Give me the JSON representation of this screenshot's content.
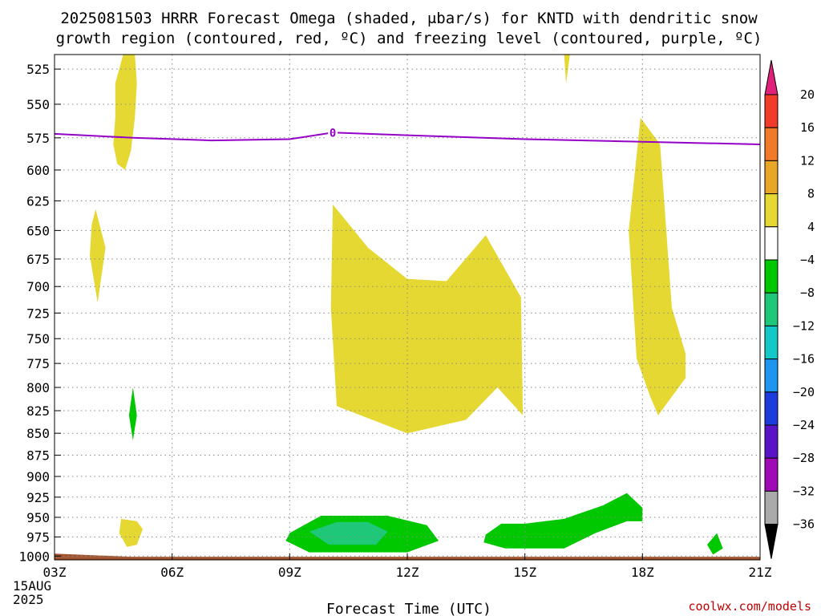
{
  "title": {
    "line1": "2025081503 HRRR Forecast Omega (shaded, μbar/s) for KNTD with dendritic snow",
    "line2": "growth region (contoured, red, ºC) and freezing level (contoured, purple, ºC)"
  },
  "credit": "coolwx.com/models",
  "chart_data": {
    "type": "contour",
    "title": "2025081503 HRRR Forecast Omega (shaded, μbar/s) for KNTD with dendritic snow growth region (contoured, red, ºC) and freezing level (contoured, purple, ºC)",
    "xlabel": "Forecast Time (UTC)",
    "ylabel": "",
    "x_unit": "hours since 2025-08-15 03Z",
    "xlim": [
      0,
      18
    ],
    "x_ticks": [
      {
        "x": 0,
        "label": "03Z",
        "sub": [
          "15AUG",
          "2025"
        ]
      },
      {
        "x": 3,
        "label": "06Z"
      },
      {
        "x": 6,
        "label": "09Z"
      },
      {
        "x": 9,
        "label": "12Z"
      },
      {
        "x": 12,
        "label": "15Z"
      },
      {
        "x": 15,
        "label": "18Z"
      },
      {
        "x": 18,
        "label": "21Z"
      }
    ],
    "y_scale": "log",
    "y_reversed": true,
    "ylim": [
      1005,
      515
    ],
    "y_ticks": [
      525,
      550,
      575,
      600,
      625,
      650,
      675,
      700,
      725,
      750,
      775,
      800,
      825,
      850,
      875,
      900,
      925,
      950,
      975,
      1000
    ],
    "grid": true,
    "colorbar": {
      "levels": [
        "20",
        "16",
        "12",
        "8",
        "4",
        "−4",
        "−8",
        "−12",
        "−16",
        "−20",
        "−24",
        "−28",
        "−32",
        "−36"
      ],
      "bins": [
        {
          "range": [
            20,
            null
          ],
          "color": "#e0207a"
        },
        {
          "range": [
            16,
            20
          ],
          "color": "#f03c28"
        },
        {
          "range": [
            12,
            16
          ],
          "color": "#f07a28"
        },
        {
          "range": [
            8,
            12
          ],
          "color": "#e8a628"
        },
        {
          "range": [
            4,
            8
          ],
          "color": "#e6d832"
        },
        {
          "range": [
            -4,
            4
          ],
          "color": "#ffffff"
        },
        {
          "range": [
            -8,
            -4
          ],
          "color": "#00c800"
        },
        {
          "range": [
            -12,
            -8
          ],
          "color": "#1ec878"
        },
        {
          "range": [
            -16,
            -12
          ],
          "color": "#14c8c8"
        },
        {
          "range": [
            -20,
            -16
          ],
          "color": "#1e96f0"
        },
        {
          "range": [
            -24,
            -20
          ],
          "color": "#1e3cdc"
        },
        {
          "range": [
            -28,
            -24
          ],
          "color": "#5a14c8"
        },
        {
          "range": [
            -32,
            -28
          ],
          "color": "#a00ab4"
        },
        {
          "range": [
            -36,
            -32
          ],
          "color": "#aaaaaa"
        },
        {
          "range": [
            null,
            -36
          ],
          "color": "#000000"
        }
      ]
    },
    "freezing_level": {
      "label": "0",
      "color": "#9400c8",
      "points": [
        [
          0,
          572
        ],
        [
          2,
          575
        ],
        [
          4,
          577
        ],
        [
          6,
          576
        ],
        [
          7.1,
          571
        ],
        [
          9,
          573
        ],
        [
          12,
          576
        ],
        [
          15,
          578
        ],
        [
          18,
          580
        ]
      ]
    },
    "ground": {
      "color": "#a0522d",
      "pressure": 1001
    },
    "regions": [
      {
        "name": "omega-4-8-a",
        "level": "4 to 8",
        "color": "#e6d832",
        "points": [
          [
            1.75,
            515
          ],
          [
            2.05,
            515
          ],
          [
            2.1,
            535
          ],
          [
            2.05,
            560
          ],
          [
            1.95,
            585
          ],
          [
            1.8,
            600
          ],
          [
            1.6,
            595
          ],
          [
            1.5,
            580
          ],
          [
            1.55,
            560
          ],
          [
            1.55,
            535
          ]
        ]
      },
      {
        "name": "omega-4-8-b",
        "level": "4 to 8",
        "color": "#e6d832",
        "points": [
          [
            1.05,
            632
          ],
          [
            1.3,
            665
          ],
          [
            1.1,
            715
          ],
          [
            0.9,
            672
          ],
          [
            0.95,
            645
          ]
        ]
      },
      {
        "name": "omega-4-8-c",
        "level": "4 to 8",
        "color": "#e6d832",
        "points": [
          [
            7.1,
            628
          ],
          [
            8.0,
            665
          ],
          [
            9.0,
            693
          ],
          [
            10.0,
            695
          ],
          [
            11.0,
            654
          ],
          [
            11.9,
            710
          ],
          [
            11.95,
            830
          ],
          [
            11.3,
            800
          ],
          [
            10.5,
            835
          ],
          [
            9.0,
            850
          ],
          [
            7.2,
            820
          ],
          [
            7.05,
            720
          ]
        ]
      },
      {
        "name": "omega-4-8-d",
        "level": "4 to 8",
        "color": "#e6d832",
        "points": [
          [
            14.95,
            560
          ],
          [
            15.45,
            580
          ],
          [
            15.75,
            720
          ],
          [
            16.1,
            765
          ],
          [
            16.1,
            790
          ],
          [
            15.4,
            830
          ],
          [
            15.2,
            810
          ],
          [
            14.85,
            770
          ],
          [
            14.65,
            650
          ]
        ]
      },
      {
        "name": "omega-4-8-e",
        "level": "4 to 8",
        "color": "#e6d832",
        "points": [
          [
            1.7,
            952
          ],
          [
            2.1,
            955
          ],
          [
            2.25,
            965
          ],
          [
            2.1,
            985
          ],
          [
            1.85,
            988
          ],
          [
            1.65,
            970
          ]
        ]
      },
      {
        "name": "omega-4-8-f",
        "level": "4 to 8",
        "color": "#e6d832",
        "points": [
          [
            13.0,
            515
          ],
          [
            13.15,
            515
          ],
          [
            13.05,
            535
          ]
        ]
      },
      {
        "name": "omega-neg4-neg8-a",
        "level": "-4 to -8",
        "color": "#00c800",
        "points": [
          [
            2.0,
            800
          ],
          [
            2.1,
            830
          ],
          [
            2.0,
            858
          ],
          [
            1.9,
            830
          ]
        ]
      },
      {
        "name": "omega-neg4-neg8-b",
        "level": "-4 to -8",
        "color": "#00c800",
        "points": [
          [
            6.0,
            970
          ],
          [
            6.8,
            948
          ],
          [
            8.5,
            948
          ],
          [
            9.5,
            960
          ],
          [
            9.8,
            980
          ],
          [
            9.0,
            995
          ],
          [
            6.5,
            995
          ],
          [
            5.9,
            980
          ]
        ]
      },
      {
        "name": "omega-neg8-neg12",
        "level": "-8 to -12",
        "color": "#1ec878",
        "points": [
          [
            6.5,
            968
          ],
          [
            7.2,
            956
          ],
          [
            8.0,
            956
          ],
          [
            8.5,
            968
          ],
          [
            8.2,
            985
          ],
          [
            7.0,
            985
          ]
        ]
      },
      {
        "name": "omega-neg4-neg8-c",
        "level": "-4 to -8",
        "color": "#00c800",
        "points": [
          [
            11.0,
            972
          ],
          [
            11.4,
            958
          ],
          [
            12.0,
            958
          ],
          [
            13.0,
            952
          ],
          [
            14.0,
            935
          ],
          [
            14.6,
            920
          ],
          [
            15.0,
            938
          ],
          [
            15.0,
            955
          ],
          [
            14.6,
            955
          ],
          [
            13.8,
            970
          ],
          [
            13.0,
            990
          ],
          [
            11.5,
            990
          ],
          [
            10.95,
            982
          ]
        ]
      },
      {
        "name": "omega-neg4-neg8-d",
        "level": "-4 to -8",
        "color": "#00c800",
        "points": [
          [
            16.65,
            985
          ],
          [
            16.9,
            970
          ],
          [
            17.05,
            990
          ],
          [
            16.8,
            998
          ]
        ]
      }
    ]
  }
}
